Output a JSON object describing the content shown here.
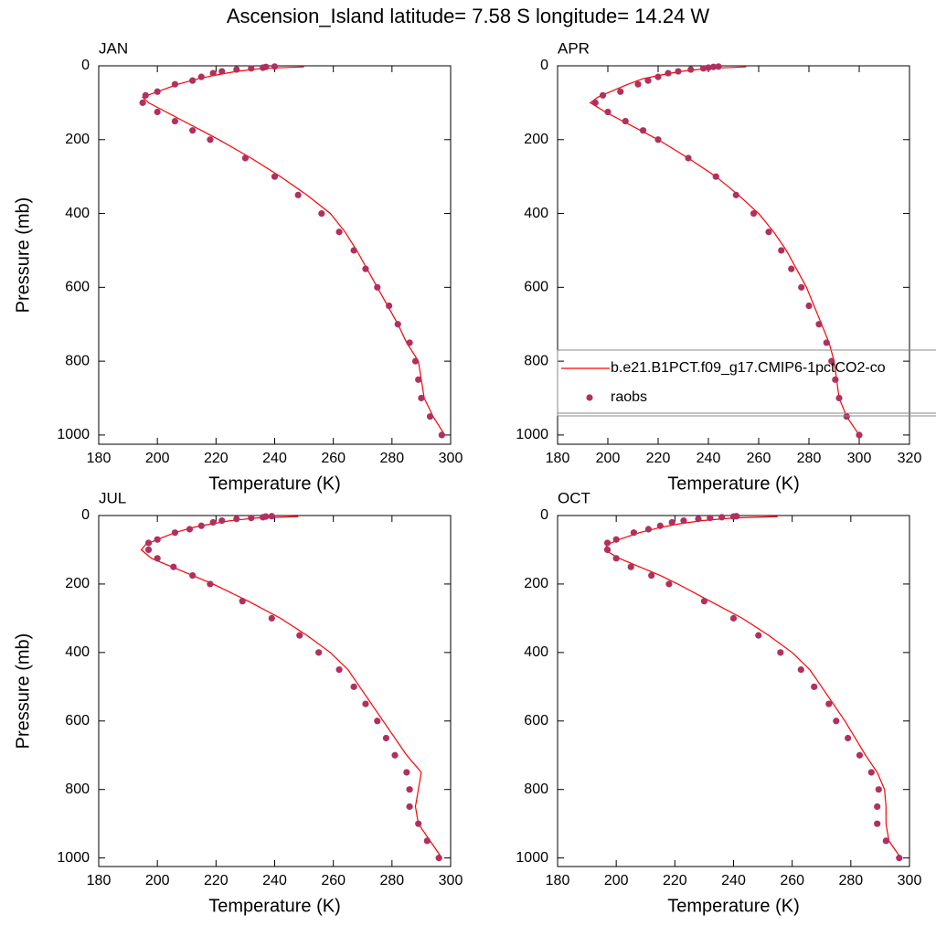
{
  "title": "Ascension_Island  latitude= 7.58 S longitude= 14.24 W",
  "chart_data": [
    {
      "type": "line",
      "title": "JAN",
      "xlabel": "Temperature (K)",
      "ylabel": "Pressure (mb)",
      "xlim": [
        180,
        300
      ],
      "ylim": [
        1025,
        0
      ],
      "xticks": [
        180,
        200,
        220,
        240,
        260,
        280,
        300
      ],
      "yticks": [
        0,
        200,
        400,
        600,
        800,
        1000
      ],
      "series": [
        {
          "mode": "line",
          "color": "#ff0000",
          "x": [
            250,
            236,
            227,
            220,
            214,
            207,
            200,
            195,
            197,
            203,
            209,
            215,
            221,
            232,
            242,
            251,
            259,
            264,
            268,
            275,
            282,
            285,
            289,
            290,
            291,
            294,
            298
          ],
          "y": [
            3,
            7,
            15,
            25,
            35,
            50,
            70,
            85,
            100,
            125,
            150,
            175,
            200,
            250,
            300,
            350,
            400,
            450,
            500,
            600,
            700,
            750,
            800,
            850,
            900,
            950,
            1000
          ]
        },
        {
          "mode": "markers",
          "color": "#b03060",
          "x": [
            240,
            237,
            236,
            232,
            227,
            222,
            219,
            215,
            212,
            206,
            200,
            196,
            195,
            200,
            206,
            212,
            218,
            230,
            240,
            248,
            256,
            262,
            267,
            271,
            275,
            279,
            282,
            286,
            288,
            289,
            290,
            293,
            297
          ],
          "y": [
            2,
            3,
            5,
            7,
            10,
            15,
            20,
            30,
            40,
            50,
            70,
            80,
            100,
            125,
            150,
            175,
            200,
            250,
            300,
            350,
            400,
            450,
            500,
            550,
            600,
            650,
            700,
            750,
            800,
            850,
            900,
            950,
            1000
          ]
        }
      ]
    },
    {
      "type": "line",
      "title": "APR",
      "xlabel": "Temperature (K)",
      "xlim": [
        180,
        320
      ],
      "ylim": [
        1025,
        0
      ],
      "xticks": [
        180,
        200,
        220,
        240,
        260,
        280,
        300,
        320
      ],
      "yticks": [
        0,
        200,
        400,
        600,
        800,
        1000
      ],
      "legend": "right",
      "series": [
        {
          "name": "b.e21.B1PCT.f09_g17.CMIP6-1pctCO2-co",
          "mode": "line",
          "color": "#ff0000",
          "x": [
            255,
            240,
            229,
            221,
            214,
            208,
            201,
            196,
            193,
            199,
            206,
            213,
            220,
            232,
            243,
            252,
            260,
            266,
            271,
            279,
            285,
            288,
            290,
            291,
            292,
            295,
            300
          ],
          "y": [
            3,
            7,
            15,
            25,
            35,
            50,
            70,
            85,
            100,
            125,
            150,
            175,
            200,
            250,
            300,
            350,
            400,
            450,
            500,
            600,
            700,
            750,
            800,
            850,
            900,
            950,
            1000
          ]
        },
        {
          "name": "raobs",
          "mode": "markers",
          "color": "#b03060",
          "x": [
            244,
            242,
            240,
            238,
            233,
            228,
            224,
            220,
            216,
            212,
            205,
            198,
            195,
            200,
            207,
            214,
            220,
            232,
            243,
            251,
            258,
            264,
            269,
            273,
            277,
            280,
            284,
            287,
            289,
            290.5,
            292,
            295,
            300
          ],
          "y": [
            2,
            3,
            5,
            7,
            10,
            15,
            20,
            30,
            40,
            50,
            70,
            80,
            100,
            125,
            150,
            175,
            200,
            250,
            300,
            350,
            400,
            450,
            500,
            550,
            600,
            650,
            700,
            750,
            800,
            850,
            900,
            950,
            1000
          ]
        }
      ]
    },
    {
      "type": "line",
      "title": "JUL",
      "xlabel": "Temperature (K)",
      "ylabel": "Pressure (mb)",
      "xlim": [
        180,
        300
      ],
      "ylim": [
        1025,
        0
      ],
      "xticks": [
        180,
        200,
        220,
        240,
        260,
        280,
        300
      ],
      "yticks": [
        0,
        200,
        400,
        600,
        800,
        1000
      ],
      "series": [
        {
          "mode": "line",
          "color": "#ff0000",
          "x": [
            248,
            234,
            225,
            218,
            212,
            206,
            200,
            196,
            194.5,
            198,
            205,
            212,
            219,
            231,
            242,
            251,
            259,
            265,
            269,
            277,
            285,
            290,
            289,
            288,
            289,
            293,
            297
          ],
          "y": [
            3,
            7,
            15,
            25,
            35,
            50,
            70,
            85,
            100,
            125,
            150,
            175,
            200,
            250,
            300,
            350,
            400,
            450,
            500,
            600,
            700,
            750,
            800,
            850,
            900,
            950,
            1000
          ]
        },
        {
          "mode": "markers",
          "color": "#b03060",
          "x": [
            239,
            237,
            236,
            232,
            227,
            222,
            219,
            215,
            211,
            206,
            200,
            197,
            197,
            200,
            205.5,
            212,
            218,
            229,
            239,
            248.5,
            255,
            262,
            267,
            271,
            275,
            278,
            281,
            285,
            286,
            286,
            289,
            292,
            296
          ],
          "y": [
            2,
            3,
            5,
            7,
            10,
            15,
            20,
            30,
            40,
            50,
            70,
            80,
            100,
            125,
            150,
            175,
            200,
            250,
            300,
            350,
            400,
            450,
            500,
            550,
            600,
            650,
            700,
            750,
            800,
            850,
            900,
            950,
            1000
          ]
        }
      ]
    },
    {
      "type": "line",
      "title": "OCT",
      "xlabel": "Temperature (K)",
      "xlim": [
        180,
        300
      ],
      "ylim": [
        1025,
        0
      ],
      "xticks": [
        180,
        200,
        220,
        240,
        260,
        280,
        300
      ],
      "yticks": [
        0,
        200,
        400,
        600,
        800,
        1000
      ],
      "series": [
        {
          "mode": "line",
          "color": "#ff0000",
          "x": [
            255,
            240,
            229,
            221,
            215,
            208,
            201,
            197,
            196,
            201,
            208,
            215,
            221,
            232,
            243,
            252,
            260,
            266,
            270,
            278,
            285,
            289,
            291.5,
            292,
            292,
            293,
            297
          ],
          "y": [
            3,
            7,
            15,
            25,
            35,
            50,
            70,
            85,
            100,
            125,
            150,
            175,
            200,
            250,
            300,
            350,
            400,
            450,
            500,
            600,
            700,
            750,
            800,
            850,
            900,
            950,
            1000
          ]
        },
        {
          "mode": "markers",
          "color": "#b03060",
          "x": [
            241,
            240,
            236,
            232,
            228,
            223,
            219,
            215,
            211,
            206,
            200,
            197,
            197,
            200,
            205,
            212,
            218,
            230,
            240,
            248.5,
            256,
            263,
            267.5,
            272.5,
            275,
            279,
            283,
            287,
            289.5,
            289,
            289,
            292,
            296.5
          ],
          "y": [
            2,
            3,
            5,
            7,
            10,
            15,
            20,
            30,
            40,
            50,
            70,
            80,
            100,
            125,
            150,
            175,
            200,
            250,
            300,
            350,
            400,
            450,
            500,
            550,
            600,
            650,
            700,
            750,
            800,
            850,
            900,
            950,
            1000
          ]
        }
      ]
    }
  ]
}
